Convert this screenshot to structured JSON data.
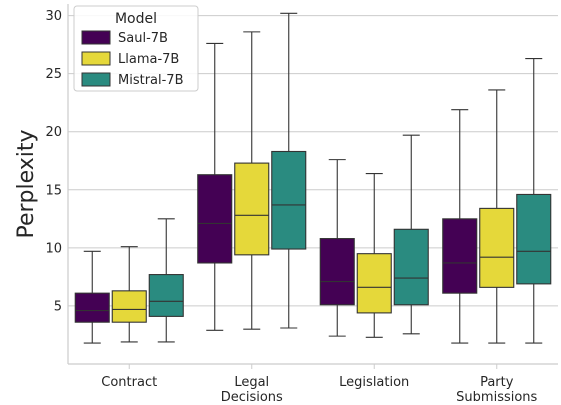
{
  "chart_data": {
    "type": "box",
    "ylabel": "Perplexity",
    "xlabel": "",
    "ylim": [
      0,
      31
    ],
    "yticks": [
      5,
      10,
      15,
      20,
      25,
      30
    ],
    "grid": "horizontal",
    "legend": {
      "title": "Model",
      "position": "top-left"
    },
    "categories": [
      {
        "lines": [
          "Contract"
        ]
      },
      {
        "lines": [
          "Legal",
          "Decisions"
        ]
      },
      {
        "lines": [
          "Legislation"
        ]
      },
      {
        "lines": [
          "Party",
          "Submissions"
        ]
      }
    ],
    "series": [
      {
        "name": "Saul-7B",
        "color": "#440154",
        "boxes": [
          {
            "whislo": 1.8,
            "q1": 3.6,
            "med": 4.6,
            "q3": 6.1,
            "whishi": 9.7
          },
          {
            "whislo": 2.9,
            "q1": 8.7,
            "med": 12.1,
            "q3": 16.3,
            "whishi": 27.6
          },
          {
            "whislo": 2.4,
            "q1": 5.1,
            "med": 7.1,
            "q3": 10.8,
            "whishi": 17.6
          },
          {
            "whislo": 1.8,
            "q1": 6.1,
            "med": 8.7,
            "q3": 12.5,
            "whishi": 21.9
          }
        ]
      },
      {
        "name": "Llama-7B",
        "color": "#e5d83a",
        "boxes": [
          {
            "whislo": 1.9,
            "q1": 3.6,
            "med": 4.7,
            "q3": 6.3,
            "whishi": 10.1
          },
          {
            "whislo": 3.0,
            "q1": 9.4,
            "med": 12.8,
            "q3": 17.3,
            "whishi": 28.6
          },
          {
            "whislo": 2.3,
            "q1": 4.4,
            "med": 6.6,
            "q3": 9.5,
            "whishi": 16.4
          },
          {
            "whislo": 1.8,
            "q1": 6.6,
            "med": 9.2,
            "q3": 13.4,
            "whishi": 23.6
          }
        ]
      },
      {
        "name": "Mistral-7B",
        "color": "#2a8b80",
        "boxes": [
          {
            "whislo": 1.9,
            "q1": 4.1,
            "med": 5.4,
            "q3": 7.7,
            "whishi": 12.5
          },
          {
            "whislo": 3.1,
            "q1": 9.9,
            "med": 13.7,
            "q3": 18.3,
            "whishi": 30.2
          },
          {
            "whislo": 2.6,
            "q1": 5.1,
            "med": 7.4,
            "q3": 11.6,
            "whishi": 19.7
          },
          {
            "whislo": 1.8,
            "q1": 6.9,
            "med": 9.7,
            "q3": 14.6,
            "whishi": 26.3
          }
        ]
      }
    ]
  }
}
